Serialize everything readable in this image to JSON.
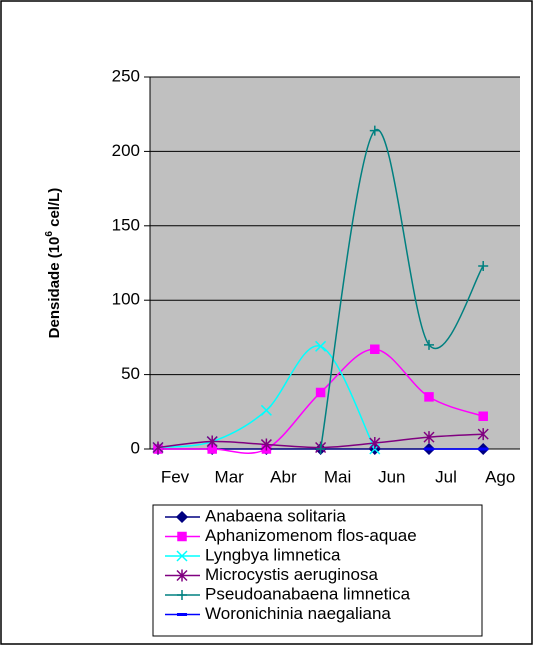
{
  "chart_data": {
    "type": "line",
    "smooth": true,
    "y_label": {
      "text": "Densidade (10",
      "superscript": "6",
      "suffix": " cel/L)"
    },
    "categories": [
      "Fev",
      "Mar",
      "Abr",
      "Mai",
      "Jun",
      "Jul",
      "Ago"
    ],
    "ylim": [
      0,
      250
    ],
    "yticks": [
      0,
      50,
      100,
      150,
      200,
      250
    ],
    "grid": true,
    "plot_background": "#c0c0c0",
    "legend": "bottom",
    "series": [
      {
        "name": "Anabaena solitaria",
        "color": "#000080",
        "marker": "diamond",
        "values": [
          0,
          0,
          0,
          0,
          0,
          0,
          0
        ]
      },
      {
        "name": "Aphanizomenom flos-aquae",
        "color": "#ff00ff",
        "marker": "square",
        "values": [
          0,
          0,
          0,
          38,
          67,
          35,
          22
        ]
      },
      {
        "name": "Lyngbya limnetica",
        "color": "#00ffff",
        "marker": "x",
        "values": [
          1,
          5,
          26,
          69,
          0,
          null,
          null
        ]
      },
      {
        "name": "Microcystis aeruginosa",
        "color": "#800080",
        "marker": "star",
        "values": [
          1,
          5,
          3,
          1,
          4,
          8,
          10
        ]
      },
      {
        "name": "Pseudoanabaena limnetica",
        "color": "#008080",
        "marker": "plus",
        "values": [
          null,
          null,
          null,
          0,
          214,
          70,
          123
        ]
      },
      {
        "name": "Woronichinia naegaliana",
        "color": "#0000ff",
        "marker": "dash",
        "values": [
          null,
          null,
          null,
          null,
          null,
          0,
          0
        ]
      }
    ]
  }
}
